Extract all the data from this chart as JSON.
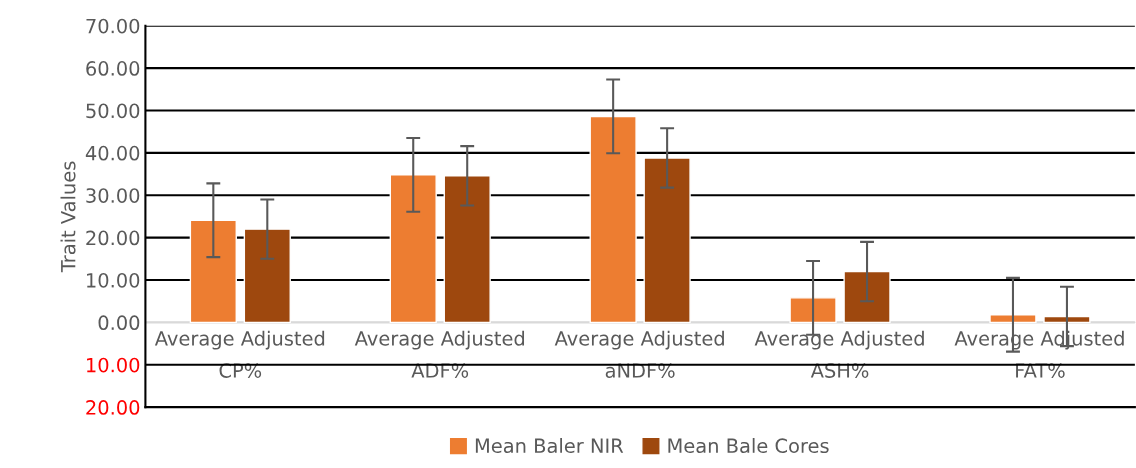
{
  "chart_data": {
    "type": "bar",
    "ylabel": "Trait Values",
    "categories": [
      "Average Adjusted CP%",
      "Average Adjusted ADF%",
      "Average Adjusted aNDF%",
      "Average Adjusted ASH%",
      "Average Adjusted FAT%"
    ],
    "series": [
      {
        "name": "Mean Baler NIR",
        "color": "#ed7d31",
        "values": [
          24.1,
          34.8,
          48.6,
          5.8,
          1.8
        ],
        "errors": [
          8.7,
          8.7,
          8.7,
          8.7,
          8.7
        ]
      },
      {
        "name": "Mean Bale Cores",
        "color": "#9e480e",
        "values": [
          22.0,
          34.6,
          38.8,
          12.0,
          1.4
        ],
        "errors": [
          7.0,
          7.0,
          7.0,
          7.0,
          7.0
        ]
      }
    ],
    "ylim": [
      -20,
      70
    ],
    "yticks": [
      {
        "value": -20,
        "label": "20.00"
      },
      {
        "value": -10,
        "label": "10.00"
      },
      {
        "value": 0,
        "label": "0.00"
      },
      {
        "value": 10,
        "label": "10.00"
      },
      {
        "value": 20,
        "label": "20.00"
      },
      {
        "value": 30,
        "label": "30.00"
      },
      {
        "value": 40,
        "label": "40.00"
      },
      {
        "value": 50,
        "label": "50.00"
      },
      {
        "value": 60,
        "label": "60.00"
      },
      {
        "value": 70,
        "label": "70.00"
      }
    ],
    "grid": "y",
    "legend": "bottom"
  }
}
